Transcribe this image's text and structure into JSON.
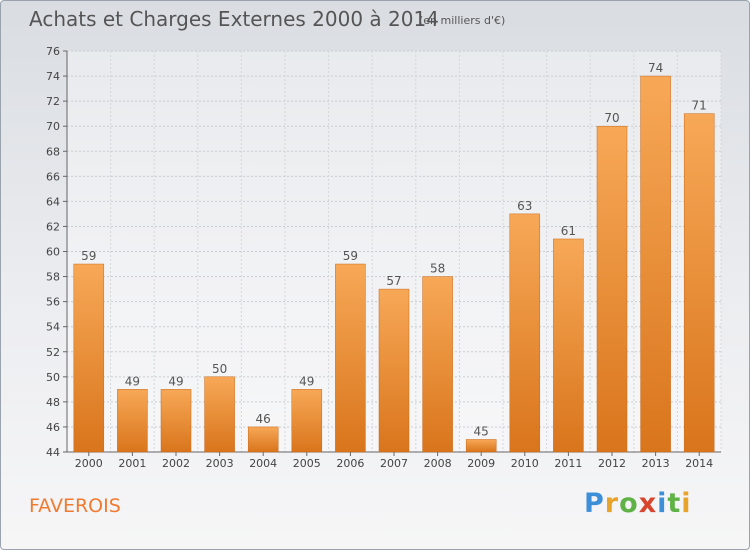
{
  "title": "Achats et Charges Externes 2000 à 2014",
  "subtitle": "(en milliers d'€)",
  "place": "FAVEROIS",
  "logo": {
    "letters": [
      "P",
      "r",
      "o",
      "x",
      "i",
      "t",
      "i"
    ]
  },
  "colors": {
    "bar_light": "#f7a857",
    "bar_dark": "#d9751c",
    "place": "#f07a30"
  },
  "chart_data": {
    "type": "bar",
    "categories": [
      "2000",
      "2001",
      "2002",
      "2003",
      "2004",
      "2005",
      "2006",
      "2007",
      "2008",
      "2009",
      "2010",
      "2011",
      "2012",
      "2013",
      "2014"
    ],
    "values": [
      59,
      49,
      49,
      50,
      46,
      49,
      59,
      57,
      58,
      45,
      63,
      61,
      70,
      74,
      71
    ],
    "data_labels": [
      "59",
      "49",
      "49",
      "50",
      "46",
      "49",
      "59",
      "57",
      "58",
      "45",
      "63",
      "61",
      "70",
      "74",
      "71"
    ],
    "yticks": [
      "44",
      "46",
      "48",
      "50",
      "52",
      "54",
      "56",
      "58",
      "60",
      "62",
      "64",
      "66",
      "68",
      "70",
      "72",
      "74",
      "76"
    ],
    "ylim": [
      44,
      76
    ],
    "grid": true,
    "legend": "none"
  }
}
